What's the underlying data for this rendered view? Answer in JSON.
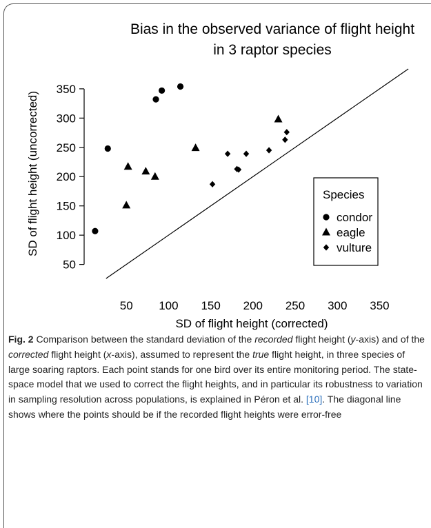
{
  "chart_data": {
    "type": "scatter",
    "title": [
      "Bias in the observed variance of flight height",
      "in 3 raptor species"
    ],
    "xlabel": "SD of flight height (corrected)",
    "ylabel": "SD of flight height (uncorrected)",
    "xlim": [
      0,
      397
    ],
    "ylim": [
      26,
      384
    ],
    "xticks": [
      50,
      100,
      150,
      200,
      250,
      300,
      350
    ],
    "yticks": [
      50,
      100,
      150,
      200,
      250,
      300,
      350
    ],
    "diagonal": {
      "slope": 1,
      "intercept": 0
    },
    "legend": {
      "title": "Species",
      "corner": "bottomright"
    },
    "series": [
      {
        "name": "condor",
        "shape": "circle",
        "color": "#000000",
        "x": [
          13,
          28,
          85,
          92,
          114
        ],
        "values": [
          107,
          248,
          332,
          347,
          354
        ]
      },
      {
        "name": "eagle",
        "shape": "triangle",
        "color": "#000000",
        "x": [
          50,
          52,
          73,
          84,
          132,
          230
        ],
        "values": [
          151,
          217,
          209,
          200,
          249,
          298
        ]
      },
      {
        "name": "vulture",
        "shape": "diamond",
        "color": "#000000",
        "x": [
          152,
          170,
          181,
          183,
          192,
          219,
          238,
          240
        ],
        "values": [
          187,
          239,
          213,
          212,
          239,
          245,
          263,
          276
        ]
      }
    ]
  },
  "caption": {
    "label": "Fig. 2",
    "parts": [
      {
        "text": " Comparison between the standard deviation of the "
      },
      {
        "text": "recorded",
        "italic": true
      },
      {
        "text": " flight height ("
      },
      {
        "text": "y",
        "italic": true
      },
      {
        "text": "-axis) and of the "
      },
      {
        "text": "corrected",
        "italic": true
      },
      {
        "text": " flight height ("
      },
      {
        "text": "x",
        "italic": true
      },
      {
        "text": "-axis), assumed to represent the "
      },
      {
        "text": "true",
        "italic": true
      },
      {
        "text": " flight height, in three species of large soaring raptors. Each point stands for one bird over its entire monitoring period. The state-space model that we used to correct the flight heights, and in particular its robustness to variation in sampling resolution across populations, is explained in Péron et al. "
      },
      {
        "text": "[10]",
        "link": true
      },
      {
        "text": ". The diagonal line shows where the points should be if the recorded flight heights were error-free"
      }
    ]
  }
}
